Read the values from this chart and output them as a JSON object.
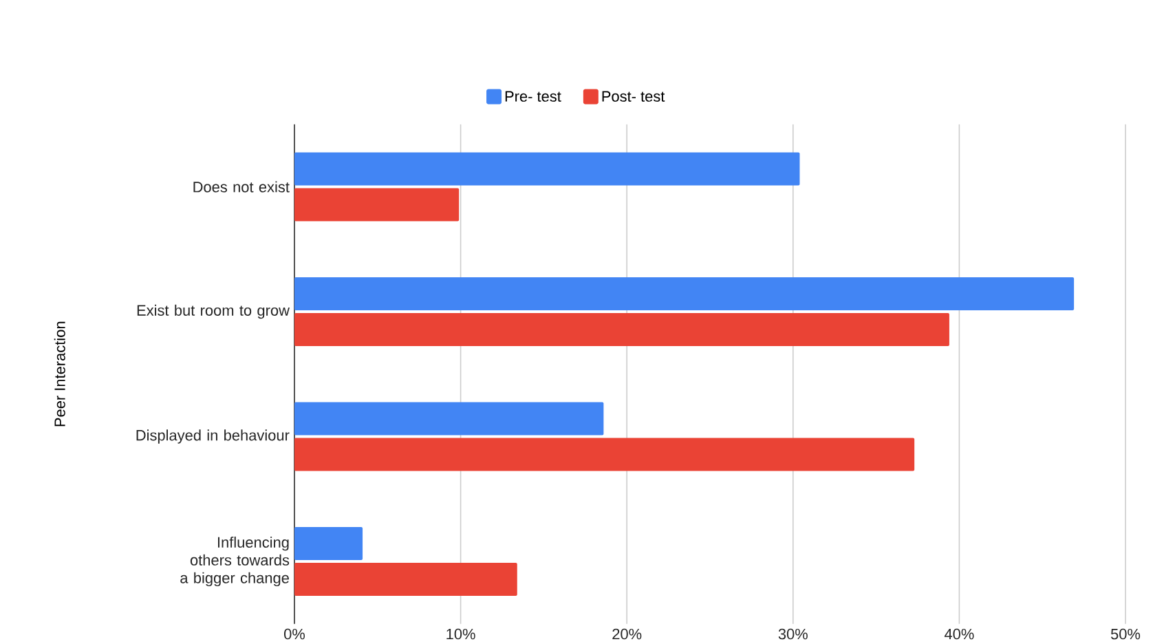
{
  "chart_data": {
    "type": "bar",
    "orientation": "horizontal",
    "ylabel": "Peer Interaction",
    "categories": [
      "Does not exist",
      "Exist but room to grow",
      "Displayed in behaviour",
      "Influencing others towards a bigger change"
    ],
    "series": [
      {
        "name": "Pre- test",
        "color": "#4285f4",
        "values": [
          30.4,
          46.9,
          18.6,
          4.1
        ]
      },
      {
        "name": "Post- test",
        "color": "#ea4335",
        "values": [
          9.9,
          39.4,
          37.3,
          13.4
        ]
      }
    ],
    "xlim": [
      0,
      50
    ],
    "xticks": [
      {
        "value": 0,
        "label": "0%"
      },
      {
        "value": 10,
        "label": "10%"
      },
      {
        "value": 20,
        "label": "20%"
      },
      {
        "value": 30,
        "label": "30%"
      },
      {
        "value": 40,
        "label": "40%"
      },
      {
        "value": 50,
        "label": "50%"
      }
    ],
    "grid": "x",
    "legend": "top"
  }
}
